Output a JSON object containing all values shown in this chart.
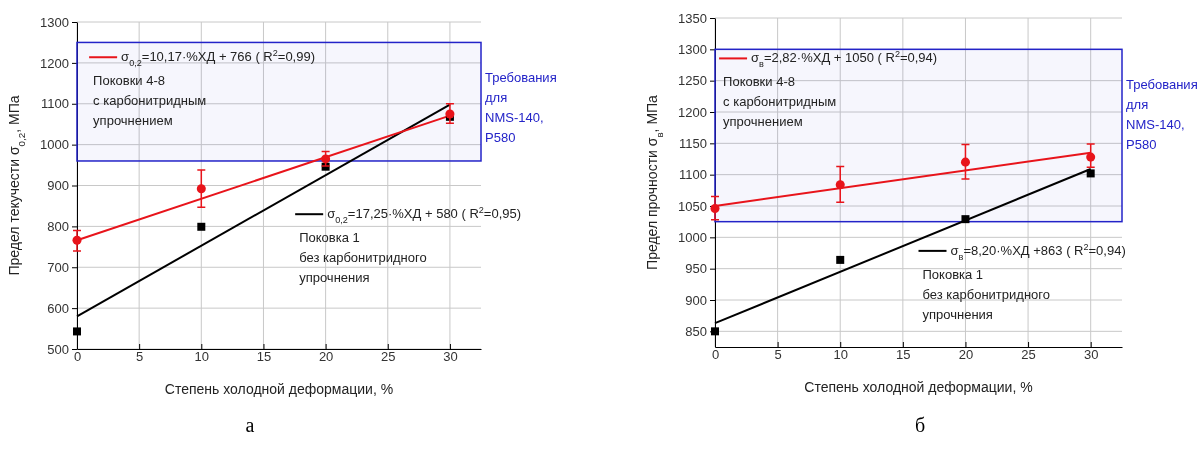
{
  "chart_data": [
    {
      "type": "scatter",
      "xlabel": "Степень холодной деформации, %",
      "ylabel": "Предел текучести σ$_{0,2}$, МПа",
      "xlim": [
        0,
        32.5
      ],
      "ylim": [
        500,
        1300
      ],
      "xticks": [
        0,
        5,
        10,
        15,
        20,
        25,
        30
      ],
      "yticks": [
        500,
        600,
        700,
        800,
        900,
        1000,
        1100,
        1200,
        1300
      ],
      "grid": true,
      "legend": "top right",
      "series": [
        {
          "color": "#e8141b",
          "marker": "circle",
          "x": [
            0,
            10,
            20,
            30
          ],
          "values": [
            766,
            892,
            965,
            1075
          ],
          "errors": [
            [
              740,
              790
            ],
            [
              847,
              938
            ],
            [
              948,
              983
            ],
            [
              1052,
              1100
            ]
          ]
        },
        {
          "color": "#000000",
          "marker": "square",
          "x": [
            0,
            10,
            20,
            30
          ],
          "values": [
            543,
            799,
            946,
            1068
          ]
        },
        {
          "type": "line",
          "name": "σ$_{0,2}$=10,17·%ХД + 766  ( R$^{2}$=0,99)",
          "color": "#e8141b",
          "x": [
            0,
            30
          ],
          "values": [
            766,
            1071
          ]
        },
        {
          "type": "line",
          "name": "σ$_{0,2}$=17,25·%ХД + 580  ( R$^{2}$=0,95)",
          "color": "#000000",
          "x": [
            0,
            30
          ],
          "values": [
            580,
            1098
          ]
        }
      ],
      "bands": [
        {
          "axis": "y",
          "from": 960,
          "to": 1250,
          "label": "Требования\nдля\nNMS-140,\nP580",
          "color": "#2323c8"
        }
      ],
      "annotations": [
        "Поковки 4-8\nс карбонитридным\nупрочнением",
        "Поковка 1\nбез карбонитридного\nупрочнения",
        "а"
      ]
    },
    {
      "type": "scatter",
      "xlabel": "Степень холодной деформации, %",
      "ylabel": "Предел прочности σ$_{в}$, МПа",
      "xlim": [
        0,
        32.5
      ],
      "ylim": [
        825,
        1350
      ],
      "xticks": [
        0,
        5,
        10,
        15,
        20,
        25,
        30
      ],
      "yticks": [
        850,
        900,
        950,
        1000,
        1050,
        1100,
        1150,
        1200,
        1250,
        1300,
        1350
      ],
      "grid": true,
      "legend": "top left",
      "series": [
        {
          "color": "#e8141b",
          "marker": "circle",
          "x": [
            0,
            10,
            20,
            30
          ],
          "values": [
            1046,
            1084,
            1120,
            1128
          ],
          "errors": [
            [
              1028,
              1065
            ],
            [
              1056,
              1113
            ],
            [
              1093,
              1148
            ],
            [
              1112,
              1149
            ]
          ]
        },
        {
          "color": "#000000",
          "marker": "square",
          "x": [
            0,
            10,
            20,
            30
          ],
          "values": [
            850,
            964,
            1029,
            1102
          ]
        },
        {
          "type": "line",
          "name": "σ$_{в}$=2,82·%ХД + 1050  ( R$^{2}$=0,94)",
          "color": "#e8141b",
          "x": [
            0,
            30
          ],
          "values": [
            1050,
            1135
          ]
        },
        {
          "type": "line",
          "name": "σ$_{в}$=8,20·%ХД +863  ( R$^{2}$=0,94)",
          "color": "#000000",
          "x": [
            0,
            30
          ],
          "values": [
            863,
            1109
          ]
        }
      ],
      "bands": [
        {
          "axis": "y",
          "from": 1025,
          "to": 1300,
          "label": "Требования\nдля\nNMS-140,\nP580",
          "color": "#2323c8"
        }
      ],
      "annotations": [
        "Поковки 4-8\nс карбонитридным\nупрочнением",
        "Поковка 1\nбез карбонитридного\nупрочнения",
        "б"
      ]
    }
  ]
}
